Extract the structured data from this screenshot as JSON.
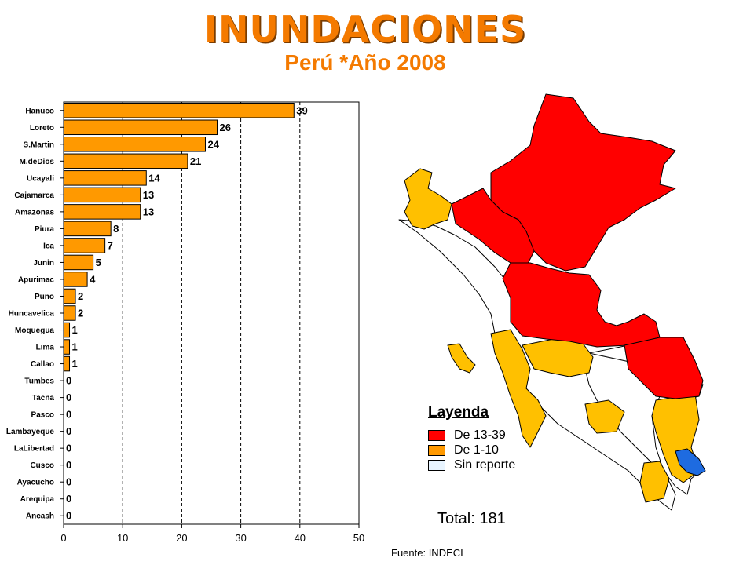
{
  "header": {
    "title": "INUNDACIONES",
    "subtitle": "Perú *Año 2008"
  },
  "chart_data": {
    "type": "bar",
    "orientation": "horizontal",
    "categories": [
      "Hanuco",
      "Loreto",
      "S.Martin",
      "M.deDios",
      "Ucayali",
      "Cajamarca",
      "Amazonas",
      "Piura",
      "Ica",
      "Junin",
      "Apurimac",
      "Puno",
      "Huncavelica",
      "Moquegua",
      "Lima",
      "Callao",
      "Tumbes",
      "Tacna",
      "Pasco",
      "Lambayeque",
      "LaLibertad",
      "Cusco",
      "Ayacucho",
      "Arequipa",
      "Ancash"
    ],
    "values": [
      39,
      26,
      24,
      21,
      14,
      13,
      13,
      8,
      7,
      5,
      4,
      2,
      2,
      1,
      1,
      1,
      0,
      0,
      0,
      0,
      0,
      0,
      0,
      0,
      0
    ],
    "xlim": [
      0,
      50
    ],
    "xticks": [
      0,
      10,
      20,
      30,
      40,
      50
    ],
    "grid": "vertical dashed",
    "bar_color": "#ff9900"
  },
  "map": {
    "colors": {
      "high": "#ff0000",
      "low": "#ffc000",
      "none": "#ffffff",
      "lake": "#1e6be0"
    }
  },
  "legend": {
    "title": "Layenda",
    "items": [
      {
        "label": "De 13-39",
        "color": "#ff0000"
      },
      {
        "label": "De 1-10",
        "color": "#ff9900"
      },
      {
        "label": "Sin reporte",
        "color": "#e8f4ff"
      }
    ]
  },
  "total": "Total: 181",
  "source": "Fuente: INDECI"
}
